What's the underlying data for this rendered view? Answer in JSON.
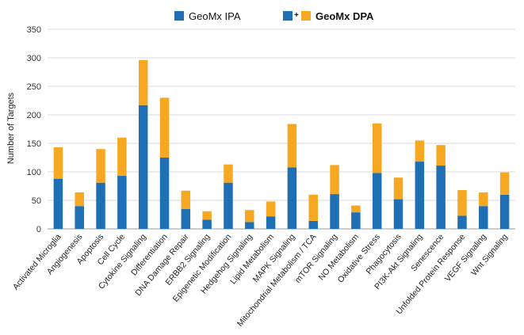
{
  "chart_data": {
    "type": "bar",
    "stacked": true,
    "ylabel": "Number of Targets",
    "xlabel": "",
    "ylim": [
      0,
      350
    ],
    "yticks": [
      0,
      50,
      100,
      150,
      200,
      250,
      300,
      350
    ],
    "grid": true,
    "legend_position": "top-center",
    "legend_plus": "+",
    "categories": [
      "Activated Microglia",
      "Angiogenesis",
      "Apoptosis",
      "Cell Cycle",
      "Cytokine Signaling",
      "Differentiation",
      "DNA Damage Repair",
      "ERBB2 Signaling",
      "Epigenetic Modification",
      "Hedgehog Signaling",
      "Lipid Metabolism",
      "MAPK Signaling",
      "Mitochondrial Metabolism / TCA",
      "mTOR Signaling",
      "NO Metabolism",
      "Oxidative Stress",
      "Phagocytosis",
      "PI3K-Akt Signaling",
      "Senescence",
      "Unfolded Protein Response",
      "VEGF Signaling",
      "Wnt Signaling"
    ],
    "series": [
      {
        "name": "GeoMx IPA",
        "color": "#1f6fb5",
        "values": [
          88,
          40,
          81,
          93,
          217,
          125,
          35,
          16,
          81,
          12,
          22,
          108,
          14,
          61,
          29,
          98,
          52,
          118,
          111,
          23,
          40,
          60
        ]
      },
      {
        "name": "GeoMx DPA",
        "color": "#f7a823",
        "values": [
          55,
          24,
          59,
          67,
          79,
          105,
          32,
          15,
          32,
          21,
          26,
          76,
          46,
          51,
          12,
          87,
          38,
          37,
          36,
          45,
          24,
          39
        ]
      }
    ]
  }
}
